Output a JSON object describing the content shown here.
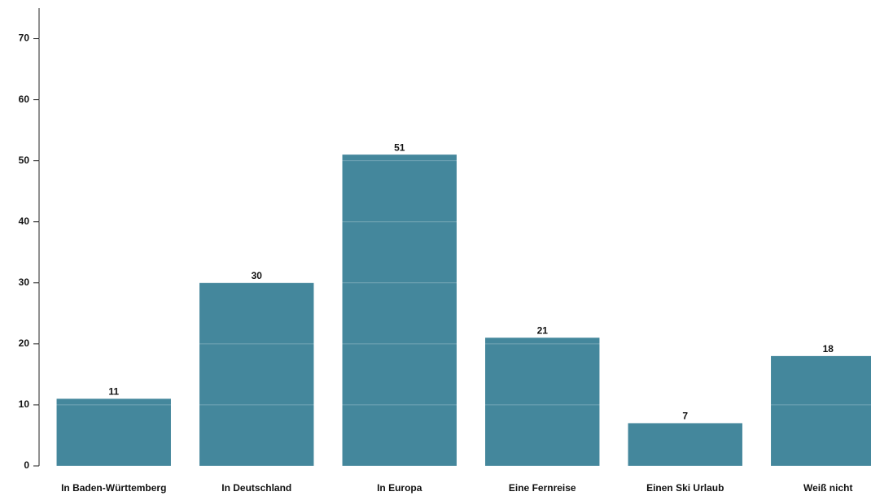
{
  "chart_data": {
    "type": "bar",
    "categories": [
      "In Baden-Württemberg",
      "In Deutschland",
      "In Europa",
      "Eine Fernreise",
      "Einen Ski Urlaub",
      "Weiß nicht"
    ],
    "values": [
      11,
      30,
      51,
      21,
      7,
      18
    ],
    "color": "#44879c",
    "ylim": [
      0,
      75
    ],
    "yticks": [
      0,
      10,
      20,
      30,
      40,
      50,
      60,
      70
    ],
    "grid": true
  }
}
